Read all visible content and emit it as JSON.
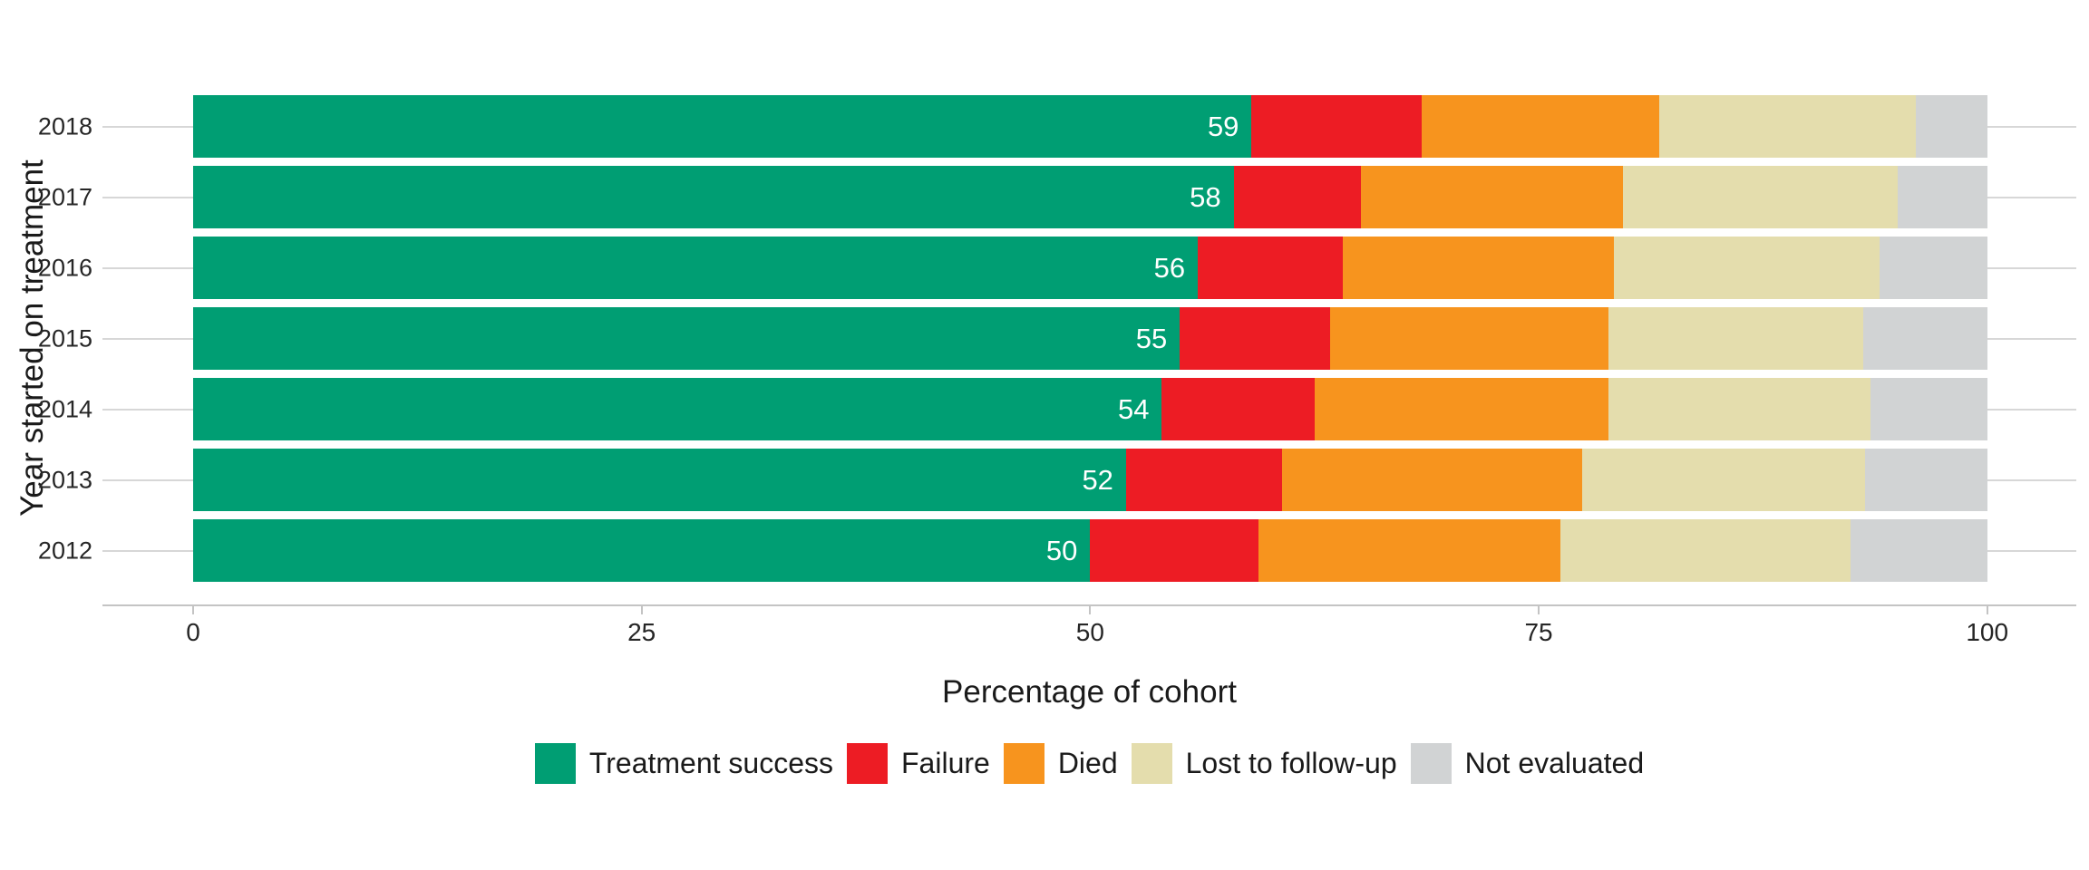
{
  "chart_data": {
    "type": "bar",
    "orientation": "horizontal",
    "stacked": true,
    "xlabel": "Percentage of cohort",
    "ylabel": "Year started on treatment",
    "xlim": [
      0,
      100
    ],
    "x_ticks": [
      "0",
      "25",
      "50",
      "75",
      "100"
    ],
    "x_tick_values": [
      0,
      25,
      50,
      75,
      100
    ],
    "grid": "horizontal",
    "legend_position": "bottom",
    "categories": [
      "2018",
      "2017",
      "2016",
      "2015",
      "2014",
      "2013",
      "2012"
    ],
    "series": [
      {
        "name": "Treatment success",
        "color": "#009E73",
        "values": [
          59,
          58,
          56,
          55,
          54,
          52,
          50
        ],
        "labels": [
          "59",
          "58",
          "56",
          "55",
          "54",
          "52",
          "50"
        ]
      },
      {
        "name": "Failure",
        "color": "#ED1C24",
        "values": [
          9.5,
          7.1,
          8.1,
          8.4,
          8.5,
          8.7,
          9.4
        ],
        "labels": null
      },
      {
        "name": "Died",
        "color": "#F7941E",
        "values": [
          13.2,
          14.6,
          15.1,
          15.5,
          16.4,
          16.7,
          16.8
        ],
        "labels": null
      },
      {
        "name": "Lost to follow-up",
        "color": "#E4DDAD",
        "values": [
          14.3,
          15.3,
          14.8,
          14.2,
          14.6,
          15.8,
          16.2
        ],
        "labels": null
      },
      {
        "name": "Not evaluated",
        "color": "#D1D3D4",
        "values": [
          4.0,
          5.0,
          6.0,
          6.9,
          6.5,
          6.8,
          7.6
        ],
        "labels": null
      }
    ],
    "colors": {
      "grid": "#d7d7d7",
      "axis_line": "#c4c4c4",
      "tick_text": "#262626",
      "title_text": "#1a1a1a",
      "bar_label_text": "#ffffff"
    }
  }
}
